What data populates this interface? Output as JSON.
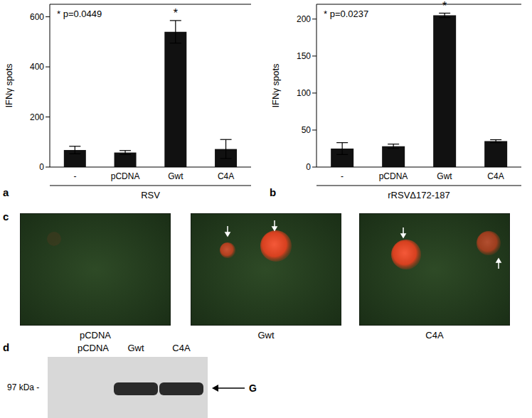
{
  "chart_data": [
    {
      "panel_label": "a",
      "type": "bar",
      "y_label": "IFNγ spots",
      "x_group_label": "RSV",
      "annotation": "* p=0.0449",
      "categories": [
        "-",
        "pCDNA",
        "Gwt",
        "C4A"
      ],
      "values": [
        68,
        58,
        540,
        72
      ],
      "errors": [
        15,
        8,
        45,
        38
      ],
      "significance": {
        "label": "*",
        "categories": [
          "Gwt"
        ]
      },
      "color": "#111111",
      "ylim": [
        0,
        650
      ],
      "yticks": [
        0,
        200,
        400,
        600
      ]
    },
    {
      "panel_label": "b",
      "type": "bar",
      "y_label": "IFNγ spots",
      "x_group_label": "rRSVΔ172-187",
      "annotation": "* p=0.0237",
      "categories": [
        "-",
        "pCDNA",
        "Gwt",
        "C4A"
      ],
      "values": [
        25,
        28,
        205,
        35
      ],
      "errors": [
        8,
        3,
        3,
        2
      ],
      "significance": {
        "label": "*",
        "categories": [
          "Gwt"
        ]
      },
      "color": "#111111",
      "ylim": [
        0,
        220
      ],
      "yticks": [
        0,
        50,
        100,
        150,
        200
      ]
    }
  ],
  "panel_c": {
    "panel_label": "c",
    "images": [
      {
        "label": "pCDNA",
        "stained": false
      },
      {
        "label": "Gwt",
        "stained": true
      },
      {
        "label": "C4A",
        "stained": true
      }
    ]
  },
  "panel_d": {
    "panel_label": "d",
    "lanes": [
      {
        "label": "pCDNA",
        "band": false
      },
      {
        "label": "Gwt",
        "band": true
      },
      {
        "label": "C4A",
        "band": true
      }
    ],
    "marker_label": "97 kDa -",
    "band_label": "G"
  }
}
